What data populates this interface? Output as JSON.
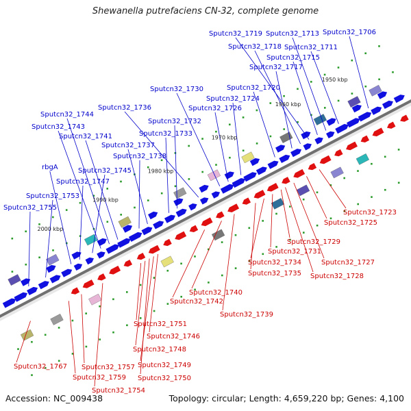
{
  "title": "Shewanella putrefaciens CN-32, complete genome",
  "footer": {
    "accession": "Accession: NC_009438",
    "topology": "Topology: circular; Length: 4,659,220 bp; Genes: 4,100"
  },
  "colors": {
    "forward": "#1010e0",
    "reverse": "#e01010",
    "backbone": "#888888",
    "tick": "#2a9a2a",
    "forward_label": "#0000cc",
    "reverse_label": "#cc0000"
  },
  "kbp_marks": [
    "1950 kbp",
    "1960 kbp",
    "1970 kbp",
    "1980 kbp",
    "1990 kbp",
    "2000 kbp"
  ],
  "forward_labels": [
    "Sputcn32_1719",
    "Sputcn32_1713",
    "Sputcn32_1706",
    "Sputcn32_1718",
    "Sputcn32_1711",
    "Sputcn32_1715",
    "Sputcn32_1717",
    "Sputcn32_1730",
    "Sputcn32_1720",
    "Sputcn32_1724",
    "Sputcn32_1736",
    "Sputcn32_1726",
    "Sputcn32_1744",
    "Sputcn32_1732",
    "Sputcn32_1743",
    "Sputcn32_1741",
    "Sputcn32_1733",
    "Sputcn32_1737",
    "Sputcn32_1738",
    "rbgA",
    "Sputcn32_1745",
    "Sputcn32_1747",
    "Sputcn32_1753",
    "Sputcn32_1755"
  ],
  "reverse_labels": [
    "Sputcn32_1723",
    "Sputcn32_1725",
    "Sputcn32_1729",
    "Sputcn32_1731",
    "Sputcn32_1727",
    "Sputcn32_1734",
    "Sputcn32_1728",
    "Sputcn32_1735",
    "Sputcn32_1740",
    "Sputcn32_1742",
    "Sputcn32_1739",
    "Sputcn32_1751",
    "Sputcn32_1746",
    "Sputcn32_1748",
    "Sputcn32_1767",
    "Sputcn32_1757",
    "Sputcn32_1749",
    "Sputcn32_1759",
    "Sputcn32_1750",
    "Sputcn32_1754"
  ]
}
